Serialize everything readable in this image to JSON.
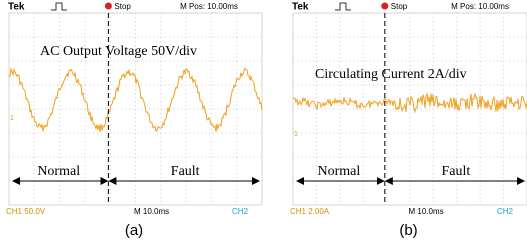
{
  "panels": [
    {
      "tek": "Tek",
      "stop": "Stop",
      "mpos": "M Pos: 10.00ms",
      "label": "AC Output Voltage 50V/div",
      "normal": "Normal",
      "fault": "Fault",
      "ch1": "CH1  50.0V",
      "timebase": "M 10.0ms",
      "ch2": "CH2",
      "marker": "1",
      "caption": "(a)"
    },
    {
      "tek": "Tek",
      "stop": "Stop",
      "mpos": "M Pos: 10.00ms",
      "label": "Circulating Current 2A/div",
      "normal": "Normal",
      "fault": "Fault",
      "ch1": "CH1  2.00A",
      "timebase": "M 10.0ms",
      "ch2": "CH2",
      "marker": "1",
      "caption": "(b)"
    }
  ]
}
